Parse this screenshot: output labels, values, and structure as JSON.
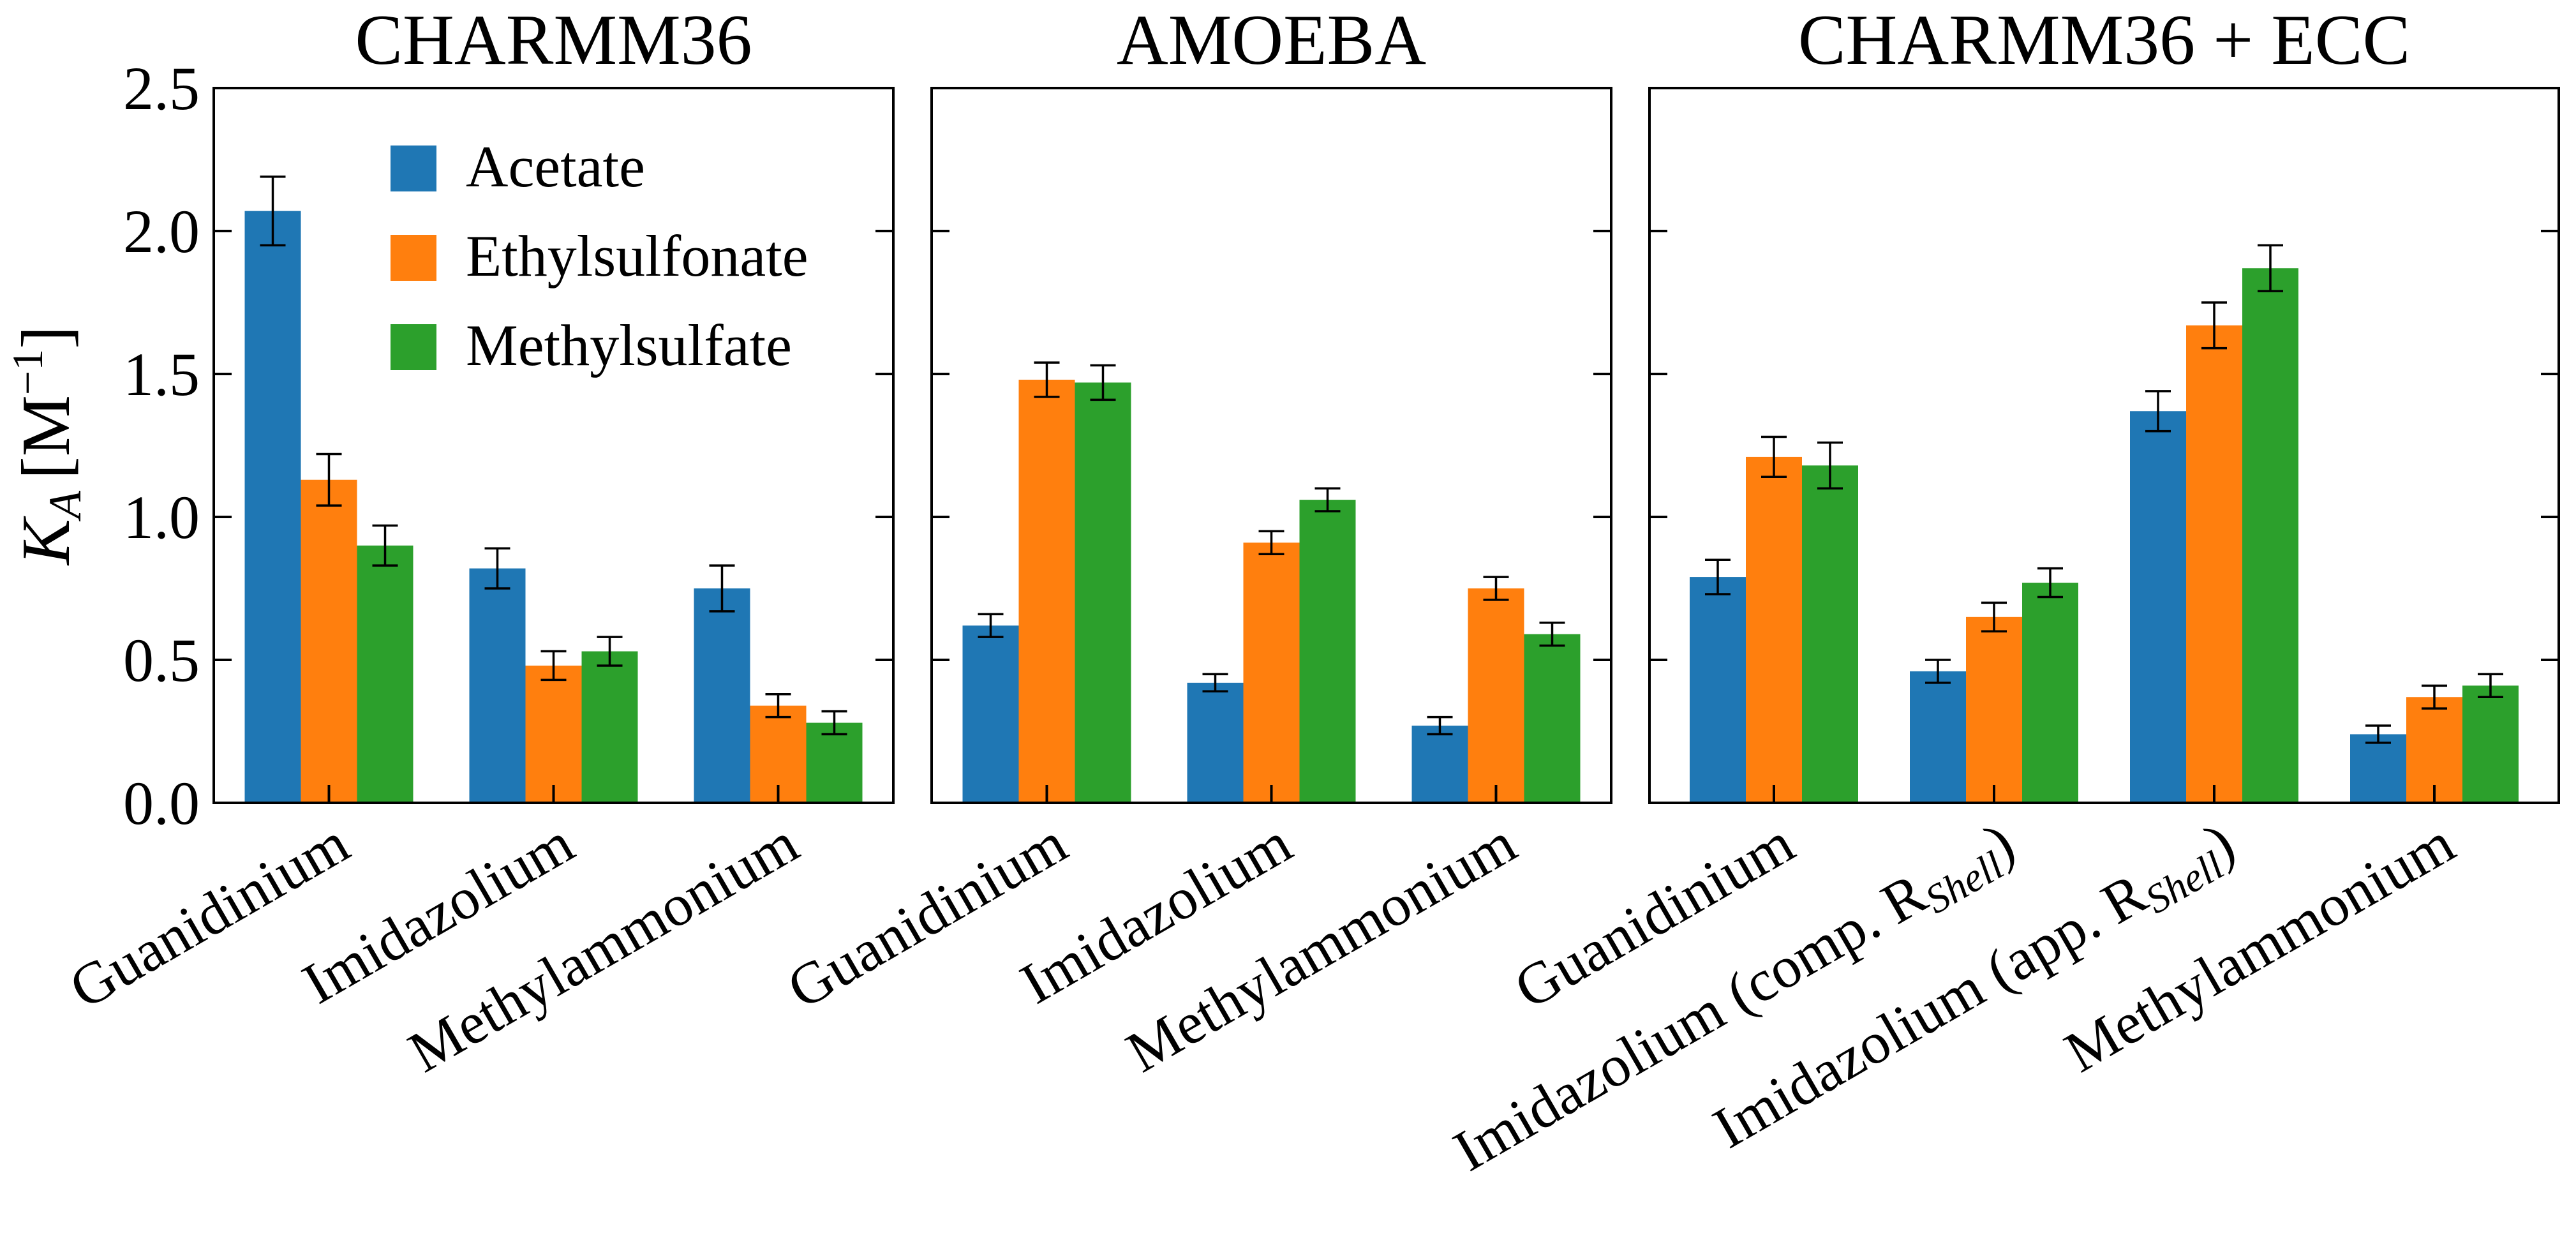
{
  "chart_data": [
    {
      "type": "bar",
      "title": "CHARMM36",
      "ylabel_main": "K",
      "ylabel_sub": "A",
      "ylabel_unit_open": "[M",
      "ylabel_unit_sup": "−1",
      "ylabel_unit_close": "]",
      "ylim": [
        0,
        2.5
      ],
      "yticks": [
        "0.0",
        "0.5",
        "1.0",
        "1.5",
        "2.0",
        "2.5"
      ],
      "categories": [
        "Guanidinium",
        "Imidazolium",
        "Methylammonium"
      ],
      "series": [
        {
          "name": "Acetate",
          "values": [
            2.07,
            0.82,
            0.75
          ],
          "errors": [
            0.12,
            0.07,
            0.08
          ]
        },
        {
          "name": "Ethylsulfonate",
          "values": [
            1.13,
            0.48,
            0.34
          ],
          "errors": [
            0.09,
            0.05,
            0.04
          ]
        },
        {
          "name": "Methylsulfate",
          "values": [
            0.9,
            0.53,
            0.28
          ],
          "errors": [
            0.07,
            0.05,
            0.04
          ]
        }
      ],
      "legend": "top-right"
    },
    {
      "type": "bar",
      "title": "AMOEBA",
      "ylim": [
        0,
        2.5
      ],
      "categories": [
        "Guanidinium",
        "Imidazolium",
        "Methylammonium"
      ],
      "series": [
        {
          "name": "Acetate",
          "values": [
            0.62,
            0.42,
            0.27
          ],
          "errors": [
            0.04,
            0.03,
            0.03
          ]
        },
        {
          "name": "Ethylsulfonate",
          "values": [
            1.48,
            0.91,
            0.75
          ],
          "errors": [
            0.06,
            0.04,
            0.04
          ]
        },
        {
          "name": "Methylsulfate",
          "values": [
            1.47,
            1.06,
            0.59
          ],
          "errors": [
            0.06,
            0.04,
            0.04
          ]
        }
      ]
    },
    {
      "type": "bar",
      "title": "CHARMM36 + ECC",
      "ylim": [
        0,
        2.5
      ],
      "categories": [
        {
          "pre": "Guanidinium",
          "main": "",
          "sub": "",
          "post": ""
        },
        {
          "pre": "Imidazolium (comp. ",
          "main": "R",
          "sub": "Shell",
          "post": ")"
        },
        {
          "pre": "Imidazolium (app. ",
          "main": "R",
          "sub": "Shell",
          "post": ")"
        },
        {
          "pre": "Methylammonium",
          "main": "",
          "sub": "",
          "post": ""
        }
      ],
      "series": [
        {
          "name": "Acetate",
          "values": [
            0.79,
            0.46,
            1.37,
            0.24
          ],
          "errors": [
            0.06,
            0.04,
            0.07,
            0.03
          ]
        },
        {
          "name": "Ethylsulfonate",
          "values": [
            1.21,
            0.65,
            1.67,
            0.37
          ],
          "errors": [
            0.07,
            0.05,
            0.08,
            0.04
          ]
        },
        {
          "name": "Methylsulfate",
          "values": [
            1.18,
            0.77,
            1.87,
            0.41
          ],
          "errors": [
            0.08,
            0.05,
            0.08,
            0.04
          ]
        }
      ]
    }
  ],
  "colors": {
    "Acetate": "#1f77b4",
    "Ethylsulfonate": "#ff7f0e",
    "Methylsulfate": "#2ca02c"
  }
}
